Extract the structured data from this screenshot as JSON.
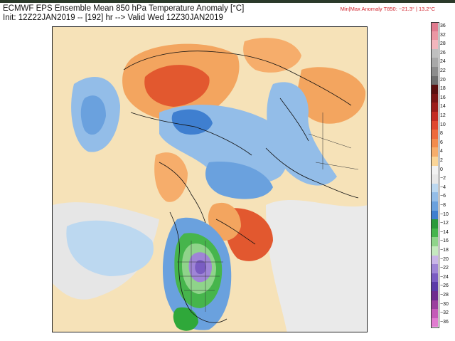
{
  "header": {
    "title_line1": "ECMWF EPS Ensemble Mean 850 hPa Temperature Anomaly [°C]",
    "title_line2": "Init: 12Z22JAN2019 -- [192] hr --> Valid Wed 12Z30JAN2019",
    "minmax": "Min|Max Anomaly T850: −21.3° | 13.2°C"
  },
  "colors": {
    "warm_light": "#f7d79b",
    "warm_mid": "#f3a55f",
    "warm_strong": "#e2582f",
    "cold_light": "#c7dff2",
    "cold_mid": "#7fb0e2",
    "cold_strong": "#3f7fd0",
    "cold_green": "#2fa83a",
    "cold_purple": "#8a63c8"
  },
  "colorbar": [
    {
      "label": "36",
      "color": "#e07a8e"
    },
    {
      "label": "32",
      "color": "#eb96a3"
    },
    {
      "label": "28",
      "color": "#f3b6bd"
    },
    {
      "label": "26",
      "color": "#bfbfbf"
    },
    {
      "label": "24",
      "color": "#a8a8a8"
    },
    {
      "label": "22",
      "color": "#8c8c8c"
    },
    {
      "label": "20",
      "color": "#6e6e6e"
    },
    {
      "label": "18",
      "color": "#5a0f0f"
    },
    {
      "label": "16",
      "color": "#7a1414"
    },
    {
      "label": "14",
      "color": "#9c1c1a"
    },
    {
      "label": "12",
      "color": "#c42b23"
    },
    {
      "label": "10",
      "color": "#e0462f"
    },
    {
      "label": "8",
      "color": "#ee6a3c"
    },
    {
      "label": "6",
      "color": "#f28b4d"
    },
    {
      "label": "4",
      "color": "#f6ad6b"
    },
    {
      "label": "2",
      "color": "#fad597"
    },
    {
      "label": "0",
      "color": "#f2f2f2"
    },
    {
      "label": "−2",
      "color": "#e8e8e8"
    },
    {
      "label": "−4",
      "color": "#bcd8f0"
    },
    {
      "label": "−6",
      "color": "#93bde8"
    },
    {
      "label": "−8",
      "color": "#6aa1de"
    },
    {
      "label": "−10",
      "color": "#3f7fd0"
    },
    {
      "label": "−12",
      "color": "#2a9a3a"
    },
    {
      "label": "−14",
      "color": "#46b54c"
    },
    {
      "label": "−16",
      "color": "#8fd48a"
    },
    {
      "label": "−18",
      "color": "#c5e9bf"
    },
    {
      "label": "−20",
      "color": "#c9b5e8"
    },
    {
      "label": "−22",
      "color": "#9f85d6"
    },
    {
      "label": "−24",
      "color": "#7a5cc2"
    },
    {
      "label": "−26",
      "color": "#5a3aa8"
    },
    {
      "label": "−28",
      "color": "#6f2c8f"
    },
    {
      "label": "−30",
      "color": "#9b3f9f"
    },
    {
      "label": "−32",
      "color": "#c45ab8"
    },
    {
      "label": "−36",
      "color": "#e07bd0"
    }
  ]
}
